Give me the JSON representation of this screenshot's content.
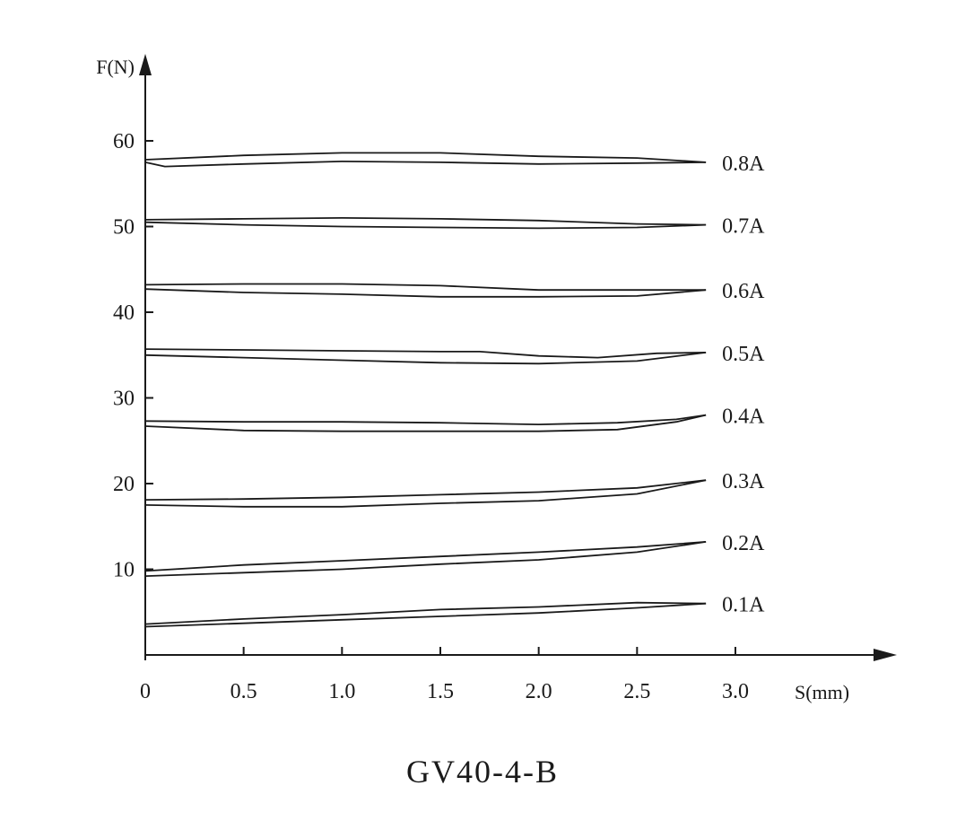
{
  "chart_data": {
    "type": "line",
    "title": "GV40-4-B",
    "xlabel": "S(mm)",
    "ylabel": "F(N)",
    "xlim": [
      0,
      3.0
    ],
    "ylim": [
      0,
      60
    ],
    "x_ticks": [
      0,
      0.5,
      1.0,
      1.5,
      2.0,
      2.5,
      3.0
    ],
    "x_tick_labels": [
      "0",
      "0.5",
      "1.0",
      "1.5",
      "2.0",
      "2.5",
      "3.0"
    ],
    "y_ticks": [
      10,
      20,
      30,
      40,
      50,
      60
    ],
    "y_tick_labels": [
      "10",
      "20",
      "30",
      "40",
      "50",
      "60"
    ],
    "grid": false,
    "legend": "none",
    "series": [
      {
        "name": "0.8A",
        "upper": [
          [
            0,
            57.8
          ],
          [
            0.5,
            58.3
          ],
          [
            1.0,
            58.6
          ],
          [
            1.5,
            58.6
          ],
          [
            2.0,
            58.2
          ],
          [
            2.5,
            58.0
          ],
          [
            2.85,
            57.5
          ]
        ],
        "lower": [
          [
            0,
            57.5
          ],
          [
            0.1,
            57.0
          ],
          [
            0.5,
            57.3
          ],
          [
            1.0,
            57.6
          ],
          [
            1.5,
            57.5
          ],
          [
            2.0,
            57.3
          ],
          [
            2.5,
            57.4
          ],
          [
            2.85,
            57.5
          ]
        ]
      },
      {
        "name": "0.7A",
        "upper": [
          [
            0,
            50.8
          ],
          [
            0.5,
            50.9
          ],
          [
            1.0,
            51.0
          ],
          [
            1.5,
            50.9
          ],
          [
            2.0,
            50.7
          ],
          [
            2.5,
            50.3
          ],
          [
            2.85,
            50.2
          ]
        ],
        "lower": [
          [
            0,
            50.5
          ],
          [
            0.5,
            50.2
          ],
          [
            1.0,
            50.0
          ],
          [
            1.5,
            49.9
          ],
          [
            2.0,
            49.8
          ],
          [
            2.5,
            49.9
          ],
          [
            2.85,
            50.2
          ]
        ]
      },
      {
        "name": "0.6A",
        "upper": [
          [
            0,
            43.2
          ],
          [
            0.5,
            43.3
          ],
          [
            1.0,
            43.3
          ],
          [
            1.5,
            43.1
          ],
          [
            2.0,
            42.6
          ],
          [
            2.5,
            42.6
          ],
          [
            2.85,
            42.6
          ]
        ],
        "lower": [
          [
            0,
            42.7
          ],
          [
            0.5,
            42.3
          ],
          [
            1.0,
            42.1
          ],
          [
            1.5,
            41.8
          ],
          [
            2.0,
            41.8
          ],
          [
            2.5,
            41.9
          ],
          [
            2.85,
            42.6
          ]
        ]
      },
      {
        "name": "0.5A",
        "upper": [
          [
            0,
            35.7
          ],
          [
            0.5,
            35.6
          ],
          [
            1.0,
            35.5
          ],
          [
            1.5,
            35.4
          ],
          [
            1.7,
            35.4
          ],
          [
            2.0,
            34.9
          ],
          [
            2.3,
            34.7
          ],
          [
            2.6,
            35.2
          ],
          [
            2.85,
            35.3
          ]
        ],
        "lower": [
          [
            0,
            35.0
          ],
          [
            0.5,
            34.7
          ],
          [
            1.0,
            34.4
          ],
          [
            1.5,
            34.1
          ],
          [
            2.0,
            34.0
          ],
          [
            2.5,
            34.3
          ],
          [
            2.85,
            35.3
          ]
        ]
      },
      {
        "name": "0.4A",
        "upper": [
          [
            0,
            27.3
          ],
          [
            0.5,
            27.2
          ],
          [
            1.0,
            27.2
          ],
          [
            1.5,
            27.1
          ],
          [
            2.0,
            26.9
          ],
          [
            2.4,
            27.1
          ],
          [
            2.7,
            27.5
          ],
          [
            2.85,
            28.0
          ]
        ],
        "lower": [
          [
            0,
            26.7
          ],
          [
            0.5,
            26.2
          ],
          [
            1.0,
            26.1
          ],
          [
            1.5,
            26.1
          ],
          [
            2.0,
            26.1
          ],
          [
            2.4,
            26.3
          ],
          [
            2.7,
            27.2
          ],
          [
            2.85,
            28.0
          ]
        ]
      },
      {
        "name": "0.3A",
        "upper": [
          [
            0,
            18.1
          ],
          [
            0.5,
            18.2
          ],
          [
            1.0,
            18.4
          ],
          [
            1.5,
            18.7
          ],
          [
            2.0,
            19.0
          ],
          [
            2.5,
            19.5
          ],
          [
            2.85,
            20.4
          ]
        ],
        "lower": [
          [
            0,
            17.5
          ],
          [
            0.5,
            17.3
          ],
          [
            1.0,
            17.3
          ],
          [
            1.5,
            17.7
          ],
          [
            2.0,
            18.0
          ],
          [
            2.5,
            18.8
          ],
          [
            2.85,
            20.4
          ]
        ]
      },
      {
        "name": "0.2A",
        "upper": [
          [
            0,
            9.8
          ],
          [
            0.5,
            10.5
          ],
          [
            1.0,
            11.0
          ],
          [
            1.5,
            11.5
          ],
          [
            2.0,
            12.0
          ],
          [
            2.5,
            12.6
          ],
          [
            2.85,
            13.2
          ]
        ],
        "lower": [
          [
            0,
            9.2
          ],
          [
            0.5,
            9.6
          ],
          [
            1.0,
            10.0
          ],
          [
            1.5,
            10.6
          ],
          [
            2.0,
            11.1
          ],
          [
            2.5,
            12.0
          ],
          [
            2.85,
            13.2
          ]
        ]
      },
      {
        "name": "0.1A",
        "upper": [
          [
            0,
            3.6
          ],
          [
            0.5,
            4.2
          ],
          [
            1.0,
            4.7
          ],
          [
            1.5,
            5.3
          ],
          [
            2.0,
            5.6
          ],
          [
            2.5,
            6.1
          ],
          [
            2.85,
            6.0
          ]
        ],
        "lower": [
          [
            0,
            3.3
          ],
          [
            0.5,
            3.7
          ],
          [
            1.0,
            4.1
          ],
          [
            1.5,
            4.5
          ],
          [
            2.0,
            4.9
          ],
          [
            2.5,
            5.5
          ],
          [
            2.85,
            6.0
          ]
        ]
      }
    ]
  }
}
